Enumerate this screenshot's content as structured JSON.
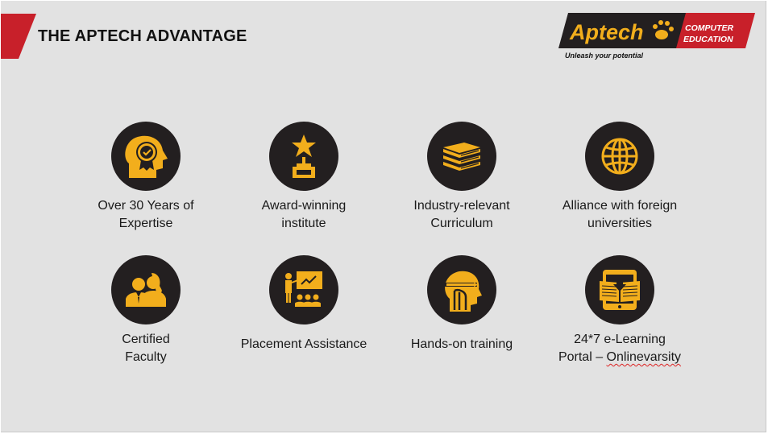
{
  "slide": {
    "title": "THE APTECH ADVANTAGE",
    "accent_color": "#c8202a",
    "icon_color": "#f2ae1c",
    "circle_color": "#231f20"
  },
  "logo": {
    "name": "Aptech",
    "line1": "COMPUTER",
    "line2": "EDUCATION",
    "tagline": "Unleash your potential"
  },
  "items": [
    {
      "icon": "head-award-badge-icon",
      "line1": "Over 30 Years of",
      "line2": "Expertise"
    },
    {
      "icon": "trophy-star-icon",
      "line1": "Award-winning",
      "line2": "institute"
    },
    {
      "icon": "books-stack-icon",
      "line1": "Industry-relevant",
      "line2": "Curriculum"
    },
    {
      "icon": "globe-icon",
      "line1": "Alliance with foreign",
      "line2": "universities"
    },
    {
      "icon": "faculty-people-icon",
      "line1": "Certified",
      "line2": "Faculty"
    },
    {
      "icon": "presentation-audience-icon",
      "line1": "Placement Assistance",
      "line2": ""
    },
    {
      "icon": "head-pencil-icon",
      "line1": "Hands-on training",
      "line2": ""
    },
    {
      "icon": "tablet-book-download-icon",
      "line1": "24*7 e-Learning",
      "line2_prefix": "Portal – ",
      "line2_link": "Onlinevarsity"
    }
  ]
}
